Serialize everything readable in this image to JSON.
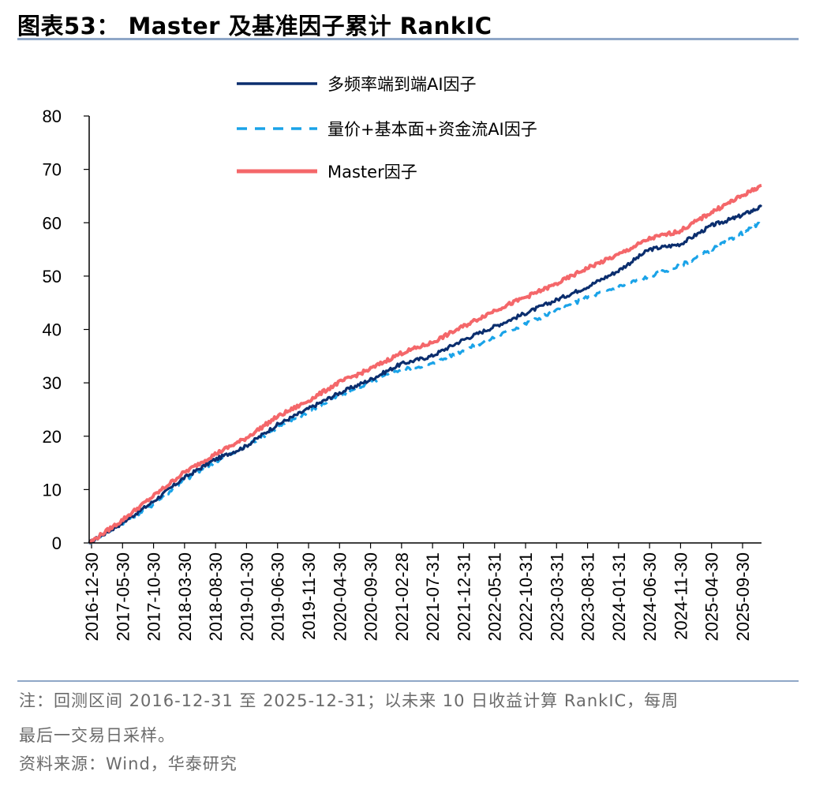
{
  "header": {
    "title": "图表53：  Master 及基准因子累计 RankIC"
  },
  "notes": {
    "line1": "注：回测区间 2016-12-31 至 2025-12-31；以未来 10 日收益计算 RankIC，每周",
    "line2": "最后一交易日采样。",
    "source": "资料来源：Wind，华泰研究"
  },
  "chart_data": {
    "type": "line",
    "title": "Master 及基准因子累计 RankIC",
    "xlabel": "",
    "ylabel": "",
    "ylim": [
      0,
      80
    ],
    "yticks": [
      0,
      10,
      20,
      30,
      40,
      50,
      60,
      70,
      80
    ],
    "grid": false,
    "legend_position": "top-left",
    "x_tick_labels": [
      "2016-12-30",
      "2017-05-30",
      "2017-10-30",
      "2018-03-30",
      "2018-08-30",
      "2019-01-30",
      "2019-06-30",
      "2019-11-30",
      "2020-04-30",
      "2020-09-30",
      "2021-02-28",
      "2021-07-31",
      "2021-12-31",
      "2022-05-31",
      "2022-10-31",
      "2023-03-31",
      "2023-08-31",
      "2024-01-31",
      "2024-06-30",
      "2024-11-30",
      "2025-04-30",
      "2025-09-30"
    ],
    "x_range_months": [
      0,
      108
    ],
    "series": [
      {
        "name": "多频率端到端AI因子",
        "color": "#0b2e6e",
        "style": "solid",
        "x_months": [
          0,
          5,
          10,
          15,
          20,
          25,
          30,
          35,
          40,
          45,
          50,
          55,
          60,
          65,
          70,
          75,
          80,
          85,
          90,
          95,
          100,
          104,
          108
        ],
        "values": [
          0,
          3.5,
          7.5,
          12,
          15.5,
          18,
          22,
          25,
          28,
          30.5,
          33.5,
          35,
          38,
          40.5,
          43,
          45.5,
          48,
          51,
          55,
          56,
          59.5,
          61,
          63
        ]
      },
      {
        "name": "量价+基本面+资金流AI因子",
        "color": "#1aa3e8",
        "style": "dashed",
        "x_months": [
          0,
          5,
          10,
          15,
          20,
          25,
          30,
          35,
          40,
          45,
          50,
          55,
          60,
          65,
          70,
          75,
          80,
          85,
          90,
          95,
          100,
          104,
          108
        ],
        "values": [
          0,
          3.5,
          7,
          11.5,
          15,
          18,
          21.5,
          24.5,
          27.5,
          30,
          32.5,
          33.5,
          36,
          38.5,
          41,
          43.5,
          46,
          48,
          50,
          52,
          55,
          57.5,
          60
        ]
      },
      {
        "name": "Master因子",
        "color": "#f4676a",
        "style": "solid",
        "x_months": [
          0,
          5,
          10,
          15,
          20,
          25,
          30,
          35,
          40,
          45,
          50,
          55,
          60,
          65,
          70,
          75,
          80,
          85,
          90,
          95,
          100,
          104,
          108
        ],
        "values": [
          0,
          4,
          8.5,
          13,
          16.5,
          19.5,
          23.5,
          26.5,
          30,
          32.5,
          35.5,
          37.5,
          40.5,
          43.5,
          46,
          48.5,
          51.5,
          54,
          57,
          58.5,
          62,
          64.5,
          67
        ]
      }
    ]
  }
}
